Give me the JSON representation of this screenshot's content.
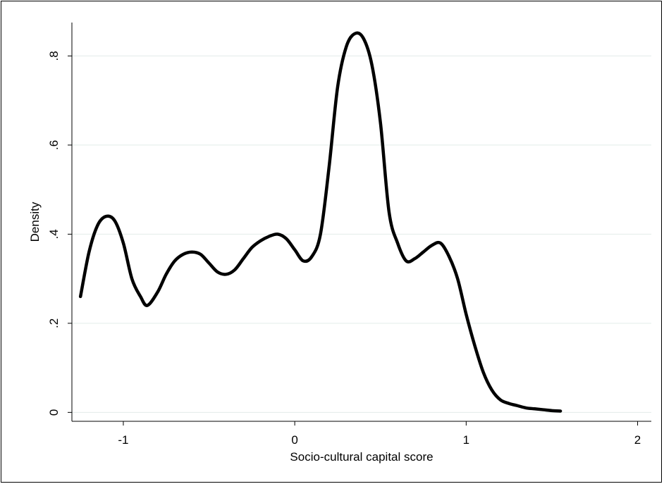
{
  "chart_data": {
    "type": "line",
    "title": "",
    "xlabel": "Socio-cultural capital score",
    "ylabel": "Density",
    "xlim": [
      -1.3,
      2.08
    ],
    "ylim": [
      -0.02,
      0.875
    ],
    "x_ticks": [
      -1,
      0,
      1,
      2
    ],
    "x_tick_labels": [
      "-1",
      "0",
      "1",
      "2"
    ],
    "y_ticks": [
      0,
      0.2,
      0.4,
      0.6,
      0.8
    ],
    "y_tick_labels": [
      "0",
      ".2",
      ".4",
      ".6",
      ".8"
    ],
    "grid": "horizontal",
    "legend": "none",
    "colors": {
      "line": "#000000",
      "grid": "#e2ece9",
      "background": "#ffffff"
    },
    "series": [
      {
        "x": [
          -1.25,
          -1.2,
          -1.15,
          -1.1,
          -1.05,
          -1.0,
          -0.95,
          -0.9,
          -0.86,
          -0.8,
          -0.75,
          -0.7,
          -0.65,
          -0.6,
          -0.55,
          -0.5,
          -0.45,
          -0.4,
          -0.35,
          -0.3,
          -0.25,
          -0.2,
          -0.15,
          -0.1,
          -0.05,
          0.0,
          0.05,
          0.1,
          0.15,
          0.2,
          0.25,
          0.3,
          0.35,
          0.4,
          0.45,
          0.5,
          0.55,
          0.6,
          0.65,
          0.7,
          0.75,
          0.8,
          0.85,
          0.9,
          0.95,
          1.0,
          1.05,
          1.1,
          1.15,
          1.2,
          1.25,
          1.3,
          1.35,
          1.4,
          1.45,
          1.5,
          1.55
        ],
        "y": [
          0.26,
          0.36,
          0.42,
          0.44,
          0.43,
          0.38,
          0.3,
          0.26,
          0.24,
          0.27,
          0.31,
          0.34,
          0.355,
          0.36,
          0.355,
          0.335,
          0.315,
          0.31,
          0.32,
          0.345,
          0.37,
          0.385,
          0.395,
          0.4,
          0.39,
          0.365,
          0.34,
          0.35,
          0.4,
          0.55,
          0.73,
          0.82,
          0.85,
          0.84,
          0.78,
          0.65,
          0.45,
          0.38,
          0.34,
          0.345,
          0.36,
          0.375,
          0.38,
          0.35,
          0.3,
          0.22,
          0.15,
          0.09,
          0.05,
          0.028,
          0.02,
          0.015,
          0.01,
          0.008,
          0.006,
          0.004,
          0.003
        ]
      }
    ]
  }
}
